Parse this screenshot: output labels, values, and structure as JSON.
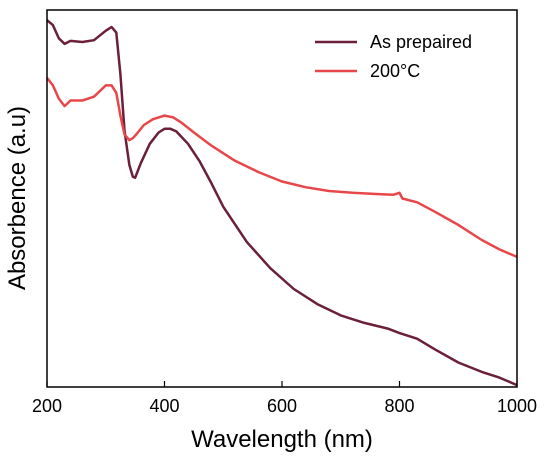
{
  "chart_data": {
    "type": "line",
    "xlabel": "Wavelength (nm)",
    "ylabel": "Absorbence (a.u)",
    "xlim": [
      200,
      1000
    ],
    "ylim": [
      0,
      1
    ],
    "x_ticks": [
      "200",
      "400",
      "600",
      "800",
      "1000"
    ],
    "y_ticks_labeled": false,
    "grid": false,
    "legend_position": "top-right",
    "series": [
      {
        "name": "As prepaired",
        "color": "#6b1f3a",
        "x": [
          200,
          210,
          220,
          230,
          240,
          260,
          280,
          300,
          310,
          318,
          325,
          332,
          340,
          346,
          350,
          360,
          375,
          390,
          400,
          410,
          420,
          440,
          460,
          480,
          500,
          540,
          580,
          620,
          660,
          700,
          740,
          780,
          800,
          830,
          860,
          900,
          940,
          970,
          1000
        ],
        "y": [
          0.973,
          0.96,
          0.925,
          0.91,
          0.918,
          0.915,
          0.92,
          0.945,
          0.955,
          0.94,
          0.83,
          0.68,
          0.59,
          0.558,
          0.555,
          0.595,
          0.645,
          0.675,
          0.685,
          0.685,
          0.678,
          0.645,
          0.598,
          0.54,
          0.478,
          0.385,
          0.315,
          0.26,
          0.22,
          0.19,
          0.17,
          0.155,
          0.143,
          0.128,
          0.1,
          0.065,
          0.04,
          0.025,
          0.005
        ]
      },
      {
        "name": "200°C",
        "color": "#e8474a",
        "x": [
          200,
          210,
          220,
          230,
          240,
          260,
          280,
          300,
          310,
          318,
          325,
          332,
          340,
          346,
          352,
          365,
          380,
          400,
          415,
          430,
          450,
          480,
          520,
          560,
          600,
          640,
          680,
          720,
          760,
          790,
          800,
          805,
          830,
          860,
          900,
          940,
          970,
          1000
        ],
        "y": [
          0.82,
          0.8,
          0.765,
          0.745,
          0.76,
          0.76,
          0.77,
          0.8,
          0.8,
          0.78,
          0.72,
          0.67,
          0.655,
          0.66,
          0.67,
          0.695,
          0.71,
          0.72,
          0.715,
          0.7,
          0.675,
          0.64,
          0.6,
          0.57,
          0.545,
          0.53,
          0.52,
          0.515,
          0.512,
          0.51,
          0.515,
          0.5,
          0.49,
          0.465,
          0.43,
          0.39,
          0.365,
          0.345
        ]
      }
    ]
  }
}
